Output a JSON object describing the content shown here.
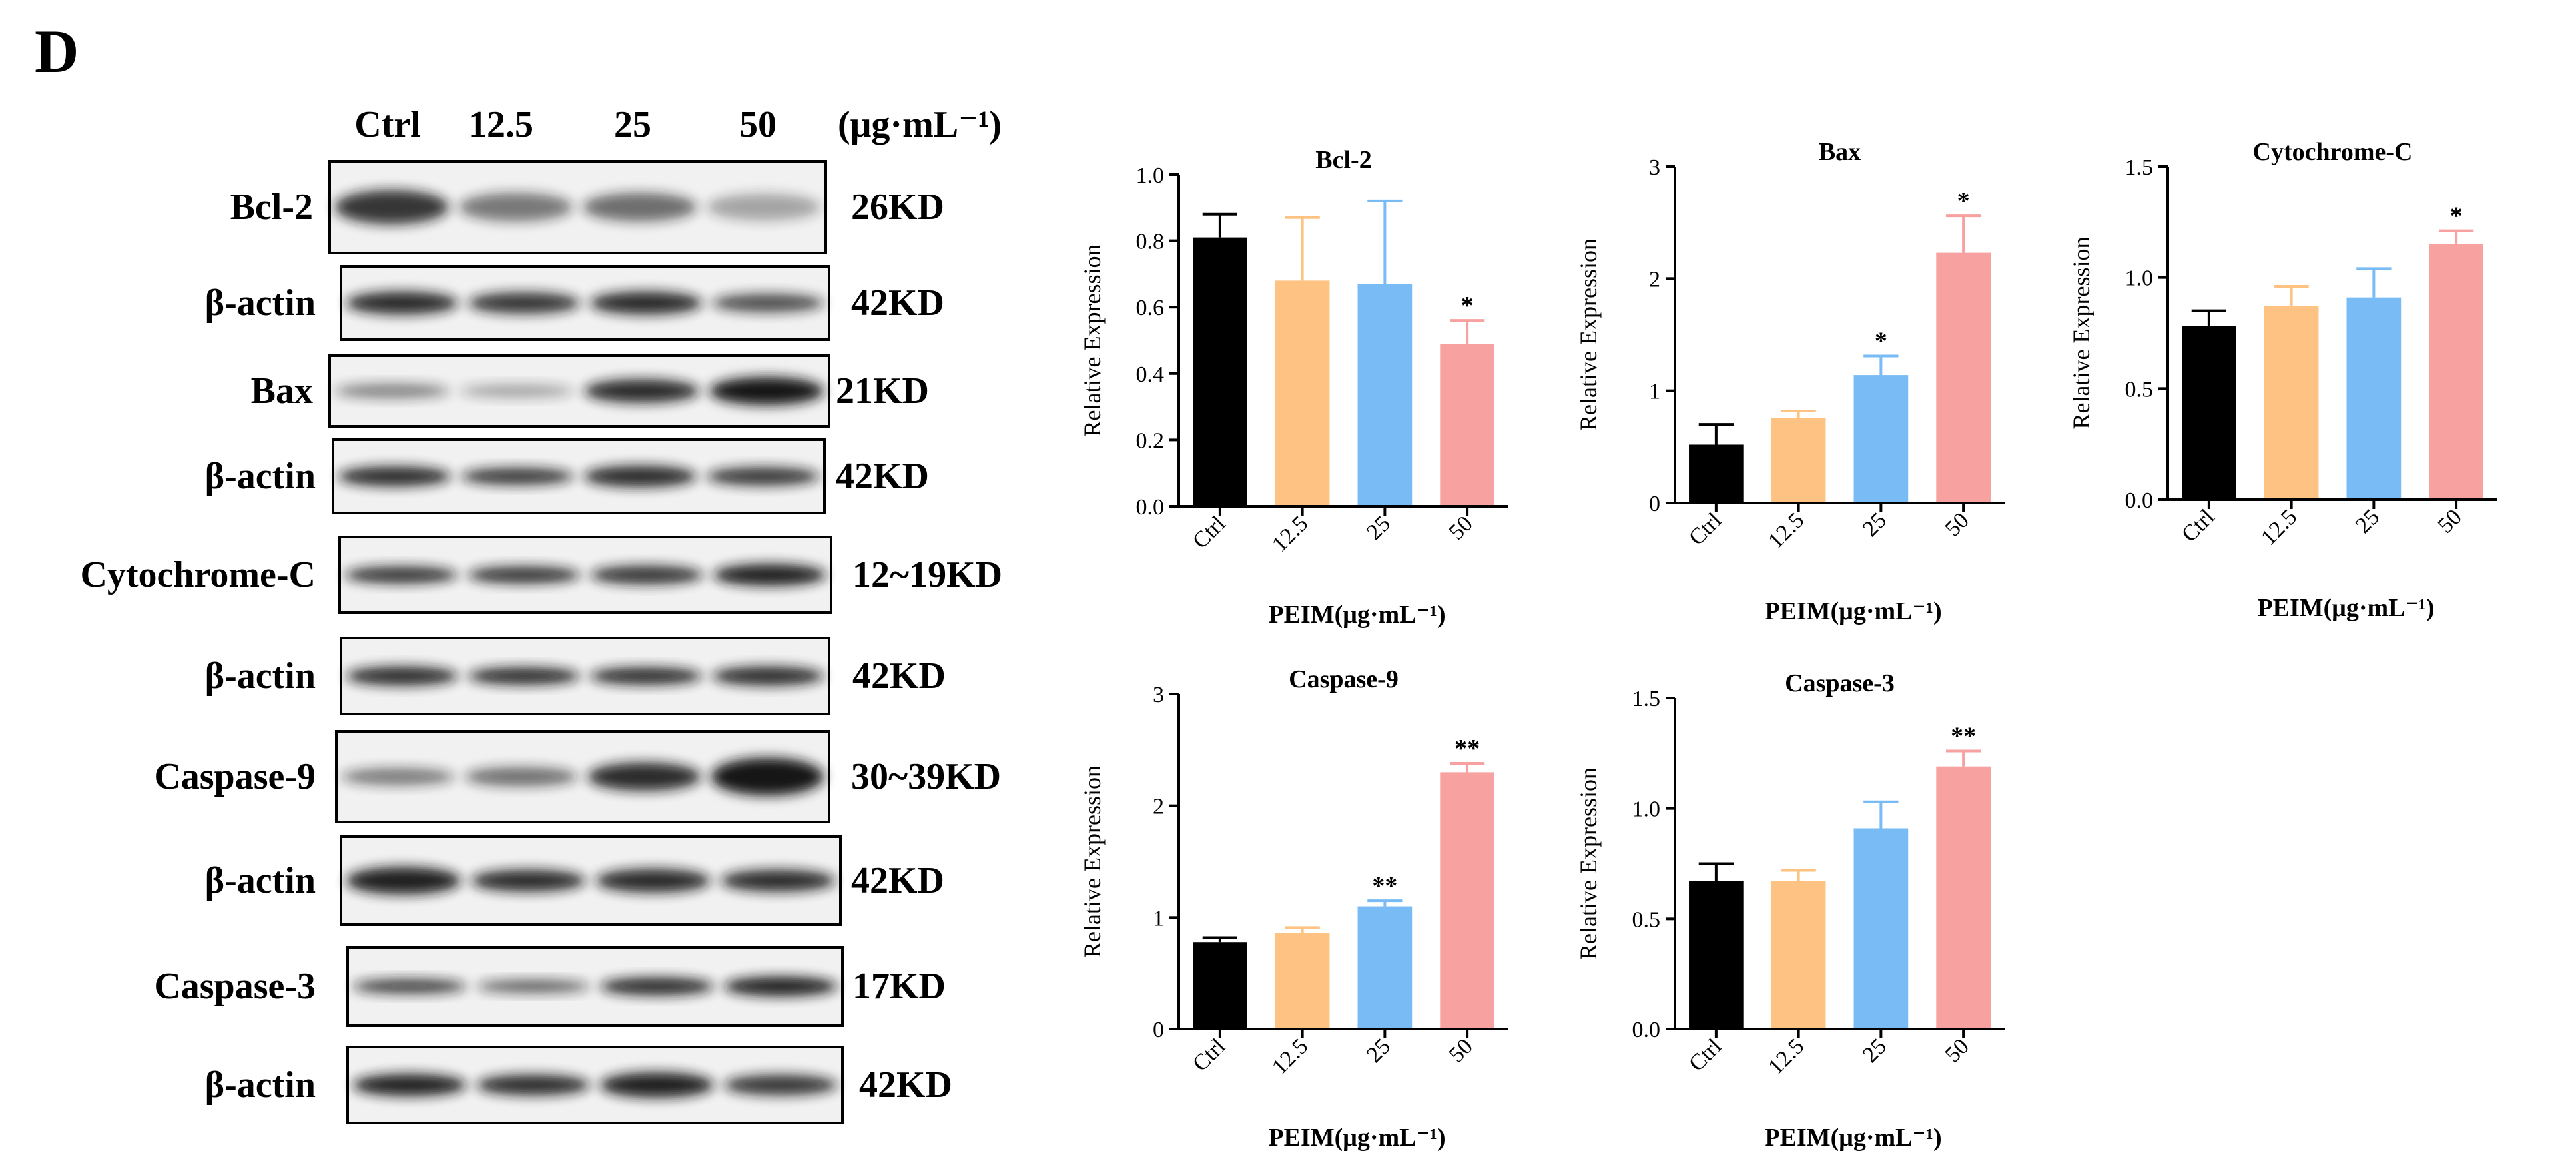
{
  "panel_label": "D",
  "blot": {
    "lane_labels": [
      "Ctrl",
      "12.5",
      "25",
      "50"
    ],
    "unit": "(μg·mL⁻¹)",
    "rows": [
      {
        "protein": "Bcl-2",
        "size": "26KD",
        "intensity": [
          0.85,
          0.55,
          0.6,
          0.35
        ],
        "thickness": [
          0.9,
          0.75,
          0.75,
          0.7
        ]
      },
      {
        "protein": "β-actin",
        "size": "42KD",
        "intensity": [
          0.9,
          0.85,
          0.9,
          0.75
        ],
        "thickness": [
          0.75,
          0.7,
          0.75,
          0.6
        ]
      },
      {
        "protein": "Bax",
        "size": "21KD",
        "intensity": [
          0.5,
          0.35,
          0.9,
          1.0
        ],
        "thickness": [
          0.5,
          0.45,
          0.8,
          0.95
        ]
      },
      {
        "protein": "β-actin",
        "size": "42KD",
        "intensity": [
          0.9,
          0.85,
          0.9,
          0.85
        ],
        "thickness": [
          0.65,
          0.55,
          0.7,
          0.6
        ]
      },
      {
        "protein": "Cytochrome-C",
        "size": "12~19KD",
        "intensity": [
          0.85,
          0.85,
          0.85,
          0.95
        ],
        "thickness": [
          0.55,
          0.55,
          0.6,
          0.7
        ]
      },
      {
        "protein": "β-actin",
        "size": "42KD",
        "intensity": [
          0.9,
          0.9,
          0.9,
          0.9
        ],
        "thickness": [
          0.6,
          0.55,
          0.55,
          0.6
        ]
      },
      {
        "protein": "Caspase-9",
        "size": "30~39KD",
        "intensity": [
          0.55,
          0.6,
          0.9,
          1.0
        ],
        "thickness": [
          0.45,
          0.5,
          0.75,
          1.0
        ]
      },
      {
        "protein": "β-actin",
        "size": "42KD",
        "intensity": [
          0.95,
          0.9,
          0.9,
          0.9
        ],
        "thickness": [
          0.75,
          0.6,
          0.65,
          0.6
        ]
      },
      {
        "protein": "Caspase-3",
        "size": "17KD",
        "intensity": [
          0.8,
          0.65,
          0.9,
          0.95
        ],
        "thickness": [
          0.45,
          0.4,
          0.55,
          0.6
        ]
      },
      {
        "protein": "β-actin",
        "size": "42KD",
        "intensity": [
          0.95,
          0.9,
          0.95,
          0.85
        ],
        "thickness": [
          0.7,
          0.65,
          0.8,
          0.65
        ]
      }
    ]
  },
  "colors": {
    "Ctrl": "#000000",
    "12.5": "#FEC382",
    "25": "#78BBF5",
    "50": "#F7A1A1",
    "band": "#151515",
    "membrane": "#f1f1f1"
  },
  "chart_data": [
    {
      "type": "bar",
      "title": "Bcl-2",
      "categories": [
        "Ctrl",
        "12.5",
        "25",
        "50"
      ],
      "values": [
        0.81,
        0.68,
        0.67,
        0.49
      ],
      "errors": [
        0.07,
        0.19,
        0.25,
        0.07
      ],
      "significance": [
        "",
        "",
        "",
        "*"
      ],
      "xlabel": "PEIM(μg·mL⁻¹)",
      "ylabel": "Relative Expression",
      "ylim": [
        0,
        1.0
      ],
      "yticks": [
        "0.0",
        "0.2",
        "0.4",
        "0.6",
        "0.8",
        "1.0"
      ],
      "grid": false
    },
    {
      "type": "bar",
      "title": "Bax",
      "categories": [
        "Ctrl",
        "12.5",
        "25",
        "50"
      ],
      "values": [
        0.52,
        0.76,
        1.14,
        2.23
      ],
      "errors": [
        0.18,
        0.06,
        0.17,
        0.33
      ],
      "significance": [
        "",
        "",
        "*",
        "*"
      ],
      "xlabel": "PEIM(μg·mL⁻¹)",
      "ylabel": "Relative Expression",
      "ylim": [
        0,
        3
      ],
      "yticks": [
        "0",
        "1",
        "2",
        "3"
      ],
      "grid": false
    },
    {
      "type": "bar",
      "title": "Cytochrome-C",
      "categories": [
        "Ctrl",
        "12.5",
        "25",
        "50"
      ],
      "values": [
        0.78,
        0.87,
        0.91,
        1.15
      ],
      "errors": [
        0.07,
        0.09,
        0.13,
        0.06
      ],
      "significance": [
        "",
        "",
        "",
        "*"
      ],
      "xlabel": "PEIM(μg·mL⁻¹)",
      "ylabel": "Relative Expression",
      "ylim": [
        0,
        1.5
      ],
      "yticks": [
        "0.0",
        "0.5",
        "1.0",
        "1.5"
      ],
      "grid": false
    },
    {
      "type": "bar",
      "title": "Caspase-9",
      "categories": [
        "Ctrl",
        "12.5",
        "25",
        "50"
      ],
      "values": [
        0.78,
        0.86,
        1.1,
        2.3
      ],
      "errors": [
        0.04,
        0.05,
        0.05,
        0.08
      ],
      "significance": [
        "",
        "",
        "**",
        "**"
      ],
      "xlabel": "PEIM(μg·mL⁻¹)",
      "ylabel": "Relative Expression",
      "ylim": [
        0,
        3
      ],
      "yticks": [
        "0",
        "1",
        "2",
        "3"
      ],
      "grid": false
    },
    {
      "type": "bar",
      "title": "Caspase-3",
      "categories": [
        "Ctrl",
        "12.5",
        "25",
        "50"
      ],
      "values": [
        0.67,
        0.67,
        0.91,
        1.19
      ],
      "errors": [
        0.08,
        0.05,
        0.12,
        0.07
      ],
      "significance": [
        "",
        "",
        "",
        "**"
      ],
      "xlabel": "PEIM(μg·mL⁻¹)",
      "ylabel": "Relative Expression",
      "ylim": [
        0,
        1.5
      ],
      "yticks": [
        "0.0",
        "0.5",
        "1.0",
        "1.5"
      ],
      "grid": false
    }
  ]
}
